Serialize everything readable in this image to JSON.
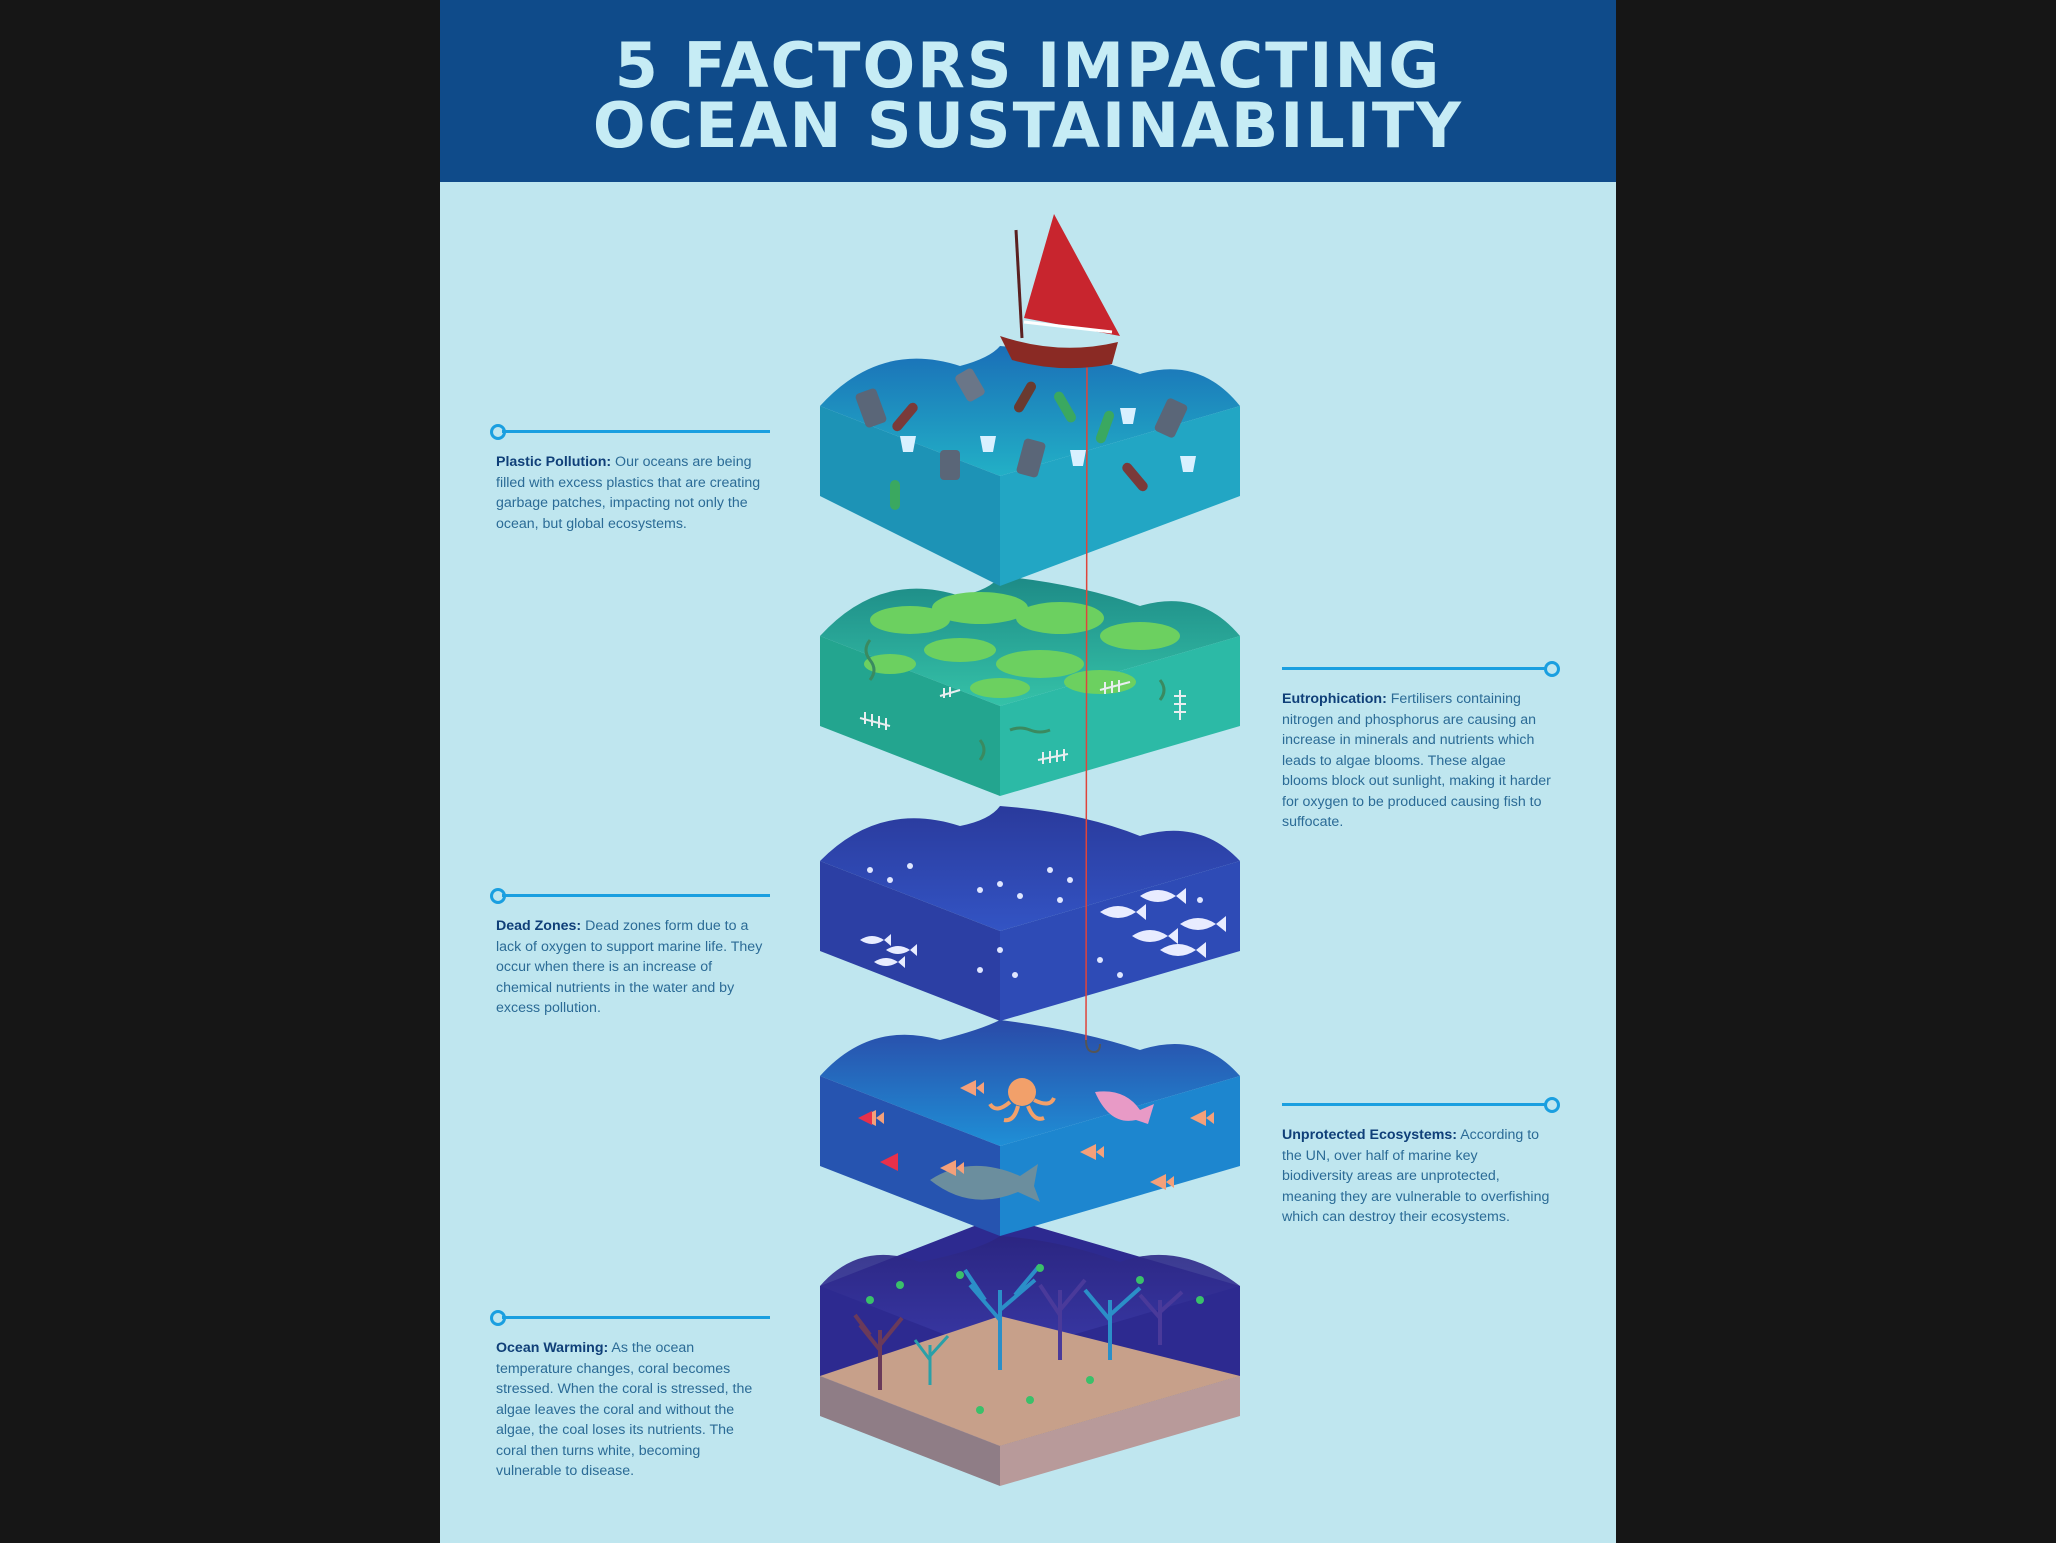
{
  "title": {
    "line1": "5 FACTORS IMPACTING",
    "line2": "OCEAN SUSTAINABILITY"
  },
  "colors": {
    "header_bg": "#0f4b8a",
    "title_text": "#c6ecf5",
    "poster_bg": "#bfe6ef",
    "callout_line": "#1a9fe0",
    "heading_text": "#0f3f78",
    "body_text": "#2b6b96",
    "sail": "#c8252e"
  },
  "factors": [
    {
      "heading": "Plastic Pollution:",
      "text": " Our oceans are being filled with excess plastics that are creating garbage patches, impacting not only the ocean, but global ecosystems.",
      "layer_color": "#1f9ab8"
    },
    {
      "heading": "Eutrophication:",
      "text": " Fertilisers containing nitrogen and phosphorus are causing an increase in minerals and nutrients which leads to algae blooms. These algae blooms block out sunlight, making it harder for oxygen to be produced causing fish to suffocate.",
      "layer_color": "#27b09a"
    },
    {
      "heading": "Dead Zones:",
      "text": " Dead zones form due to a lack of oxygen to support marine life. They occur when there is an increase of chemical nutrients in the water and by excess pollution.",
      "layer_color": "#2f49b4"
    },
    {
      "heading": "Unprotected Ecosystems:",
      "text": " According to the UN, over half of marine key biodiversity areas are unprotected, meaning they are vulnerable to overfishing which can destroy their ecosystems.",
      "layer_color": "#2166c0"
    },
    {
      "heading": "Ocean Warming:",
      "text": "  As the ocean temperature changes, coral becomes stressed. When the coral is stressed, the algae leaves the coral and without the algae, the coal loses its nutrients. The coral then turns white, becoming vulnerable to disease.",
      "layer_color": "#2f2a8c"
    }
  ]
}
